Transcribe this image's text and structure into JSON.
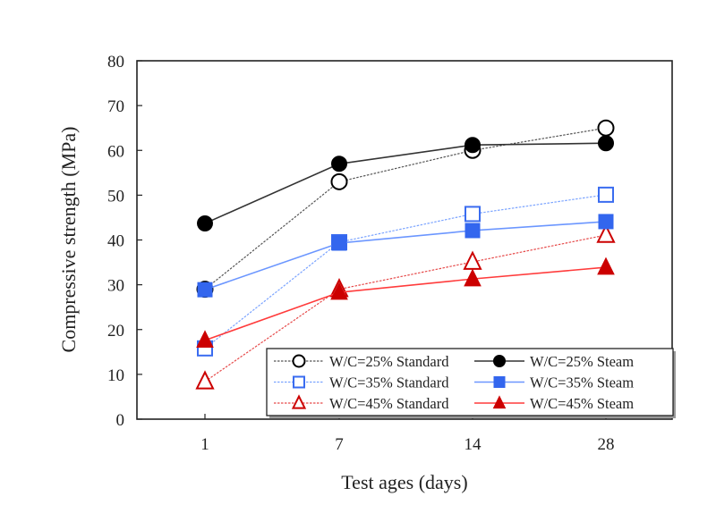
{
  "chart_data": {
    "type": "line",
    "title": "",
    "xlabel": "Test ages  (days)",
    "ylabel": "Compressive  strength  (MPa)",
    "x": [
      "1",
      "7",
      "14",
      "28"
    ],
    "ylim": [
      0,
      80
    ],
    "yticks": [
      0,
      10,
      20,
      30,
      40,
      50,
      60,
      70,
      80
    ],
    "grid": false,
    "legend_position": "bottom-right",
    "series": [
      {
        "name": "W/C=25% Standard",
        "values": [
          29,
          53,
          60,
          65
        ],
        "color": "#000000",
        "line_color": "#555555",
        "marker": "circle",
        "filled": false,
        "dashed": true
      },
      {
        "name": "W/C=25% Steam",
        "values": [
          43.7,
          57,
          61.2,
          61.6
        ],
        "color": "#000000",
        "line_color": "#333333",
        "marker": "circle",
        "filled": true,
        "dashed": false
      },
      {
        "name": "W/C=35% Standard",
        "values": [
          15.8,
          39.5,
          45.8,
          50.1
        ],
        "color": "#3a6cf0",
        "line_color": "#7aa3ff",
        "marker": "square",
        "filled": false,
        "dashed": true
      },
      {
        "name": "W/C=35% Steam",
        "values": [
          28.9,
          39.3,
          42.1,
          44.1
        ],
        "color": "#3366ee",
        "line_color": "#6b96ff",
        "marker": "square",
        "filled": true,
        "dashed": false
      },
      {
        "name": "W/C=45% Standard",
        "values": [
          8.4,
          29,
          35.1,
          41.1
        ],
        "color": "#cc0000",
        "line_color": "#e64a4a",
        "marker": "triangle",
        "filled": false,
        "dashed": true
      },
      {
        "name": "W/C=45% Steam",
        "values": [
          17.6,
          28.3,
          31.3,
          33.9
        ],
        "color": "#cc0000",
        "line_color": "#ff3b3b",
        "marker": "triangle",
        "filled": true,
        "dashed": false
      }
    ]
  }
}
